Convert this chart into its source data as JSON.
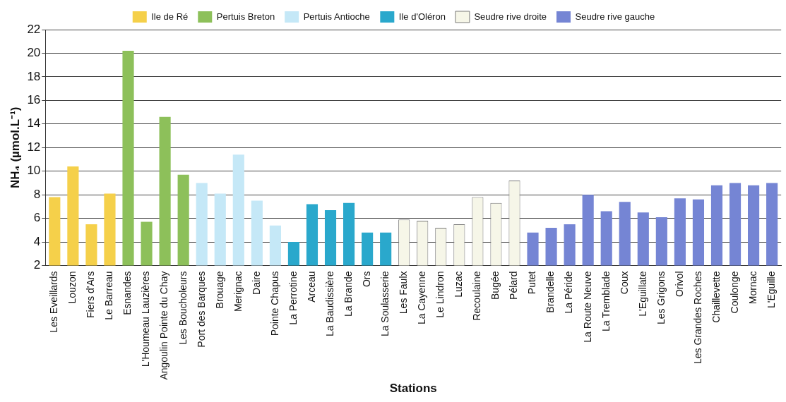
{
  "chart_data": {
    "type": "bar",
    "xlabel": "Stations",
    "ylabel": "NH₄ (µmol.L⁻¹)",
    "categories": [
      "Les Eveillards",
      "Louzon",
      "Fiers d'Ars",
      "Le Barreau",
      "Esnandes",
      "L'Houmeau Lauzières",
      "Angoulin Pointe du Chay",
      "Les Boucholeurs",
      "Port des Barques",
      "Brouage",
      "Merignac",
      "Daire",
      "Pointe Chapus",
      "La Perrotine",
      "Arceau",
      "La Baudissière",
      "La Brande",
      "Ors",
      "La Soulasserie",
      "Les Faulx",
      "La Cayenne",
      "Le Lindron",
      "Luzac",
      "Recoulaine",
      "Bugée",
      "Pélard",
      "Putet",
      "Brandelle",
      "La Péride",
      "La Route Neuve",
      "La Tremblade",
      "Coux",
      "L'Eguillate",
      "Les Grigons",
      "Orivol",
      "Les Grandes Roches",
      "Chaillevette",
      "Coulonge",
      "Mornac",
      "L'Eguille"
    ],
    "series": [
      {
        "name": "Ile de Ré",
        "color": "#f5d04a",
        "values": [
          7.8,
          10.4,
          5.5,
          8.1,
          null,
          null,
          null,
          null,
          null,
          null,
          null,
          null,
          null,
          null,
          null,
          null,
          null,
          null,
          null,
          null,
          null,
          null,
          null,
          null,
          null,
          null,
          null,
          null,
          null,
          null,
          null,
          null,
          null,
          null,
          null,
          null,
          null,
          null,
          null,
          null
        ]
      },
      {
        "name": "Pertuis Breton",
        "color": "#8dc05a",
        "values": [
          null,
          null,
          null,
          null,
          20.2,
          5.7,
          14.6,
          9.7,
          null,
          null,
          null,
          null,
          null,
          null,
          null,
          null,
          null,
          null,
          null,
          null,
          null,
          null,
          null,
          null,
          null,
          null,
          null,
          null,
          null,
          null,
          null,
          null,
          null,
          null,
          null,
          null,
          null,
          null,
          null,
          null
        ]
      },
      {
        "name": "Pertuis Antioche",
        "color": "#c5e8f7",
        "values": [
          null,
          null,
          null,
          null,
          null,
          null,
          null,
          null,
          9.0,
          8.1,
          11.4,
          7.5,
          5.4,
          null,
          null,
          null,
          null,
          null,
          null,
          null,
          null,
          null,
          null,
          null,
          null,
          null,
          null,
          null,
          null,
          null,
          null,
          null,
          null,
          null,
          null,
          null,
          null,
          null,
          null,
          null
        ]
      },
      {
        "name": "Ile d'Oléron",
        "color": "#2aa8cc",
        "values": [
          null,
          null,
          null,
          null,
          null,
          null,
          null,
          null,
          null,
          null,
          null,
          null,
          null,
          4.0,
          7.2,
          6.7,
          7.3,
          4.8,
          4.8,
          null,
          null,
          null,
          null,
          null,
          null,
          null,
          null,
          null,
          null,
          null,
          null,
          null,
          null,
          null,
          null,
          null,
          null,
          null,
          null,
          null
        ]
      },
      {
        "name": "Seudre rive droite",
        "color": "#f6f6e8",
        "values": [
          null,
          null,
          null,
          null,
          null,
          null,
          null,
          null,
          null,
          null,
          null,
          null,
          null,
          null,
          null,
          null,
          null,
          null,
          null,
          5.9,
          5.8,
          5.2,
          5.5,
          7.8,
          7.3,
          9.2,
          null,
          null,
          null,
          null,
          null,
          null,
          null,
          null,
          null,
          null,
          null,
          null,
          null,
          null
        ]
      },
      {
        "name": "Seudre rive gauche",
        "color": "#7585d4",
        "values": [
          null,
          null,
          null,
          null,
          null,
          null,
          null,
          null,
          null,
          null,
          null,
          null,
          null,
          null,
          null,
          null,
          null,
          null,
          null,
          null,
          null,
          null,
          null,
          null,
          null,
          null,
          4.8,
          5.2,
          5.5,
          8.0,
          6.6,
          7.4,
          6.5,
          6.1,
          7.7,
          7.6,
          8.8,
          9.0,
          8.8,
          9.0
        ]
      }
    ],
    "ylim": [
      2,
      22
    ],
    "yticks": [
      2,
      4,
      6,
      8,
      10,
      12,
      14,
      16,
      18,
      20,
      22
    ],
    "grid": "y",
    "legend": "top"
  }
}
